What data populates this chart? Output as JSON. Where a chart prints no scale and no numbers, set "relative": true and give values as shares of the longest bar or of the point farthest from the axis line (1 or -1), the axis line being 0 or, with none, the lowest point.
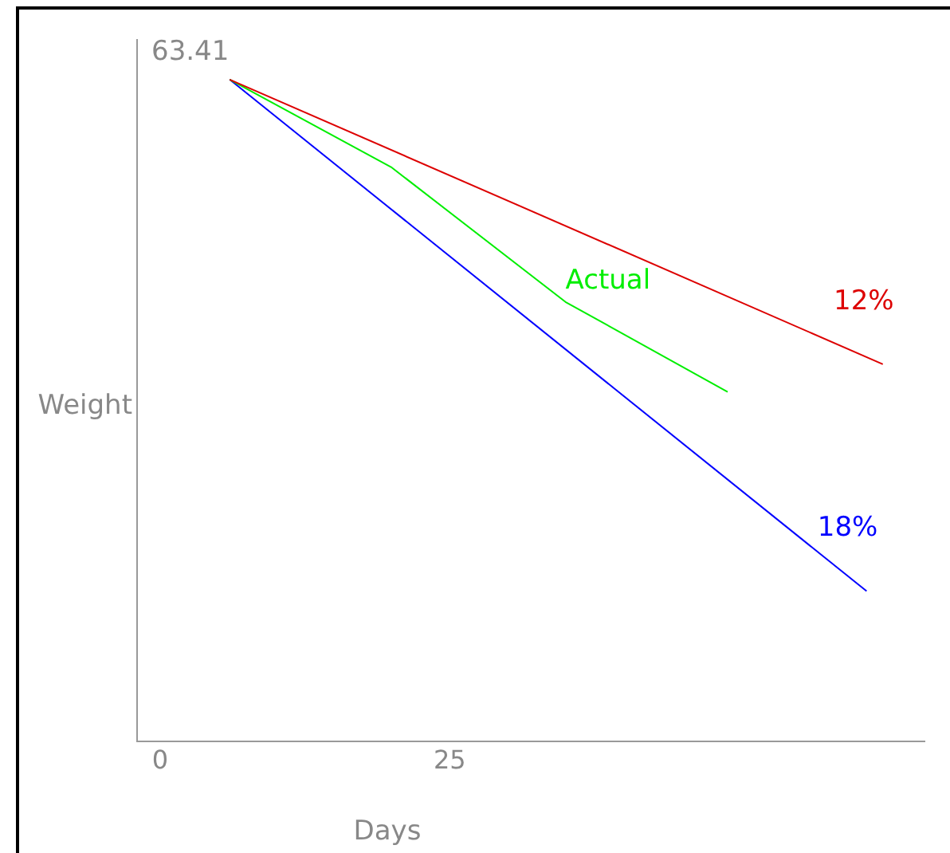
{
  "chart_data": {
    "type": "line",
    "relative": true,
    "xlabel": "Days",
    "ylabel": "Weight",
    "annotations": [
      "63.41"
    ],
    "xlim": [
      -2,
      66
    ],
    "xticks": [
      0,
      25
    ],
    "grid": false,
    "legend": false,
    "marker": "none",
    "series": [
      {
        "name": "12%",
        "color": "#dd0000",
        "x": [
          6,
          62.4
        ],
        "values": [
          1,
          0.57
        ]
      },
      {
        "name": "Actual",
        "color": "#00ee00",
        "x": [
          6,
          20,
          35,
          49
        ],
        "values": [
          1,
          0.867,
          0.664,
          0.528
        ]
      },
      {
        "name": "18%",
        "color": "#0000ff",
        "x": [
          6,
          61
        ],
        "values": [
          1,
          0.227
        ]
      }
    ]
  }
}
